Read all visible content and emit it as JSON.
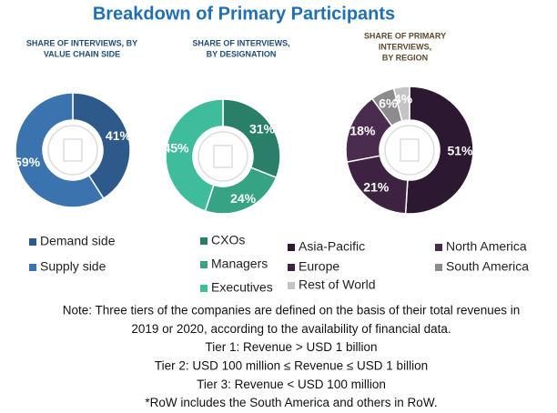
{
  "title": "Breakdown of Primary Participants",
  "chart_data": [
    {
      "type": "donut",
      "title": [
        "SHARE OF INTERVIEWS, BY",
        "VALUE CHAIN SIDE"
      ],
      "title_color": "#1f4e79",
      "categories": [
        "Demand side",
        "Supply side"
      ],
      "values": [
        41,
        59
      ],
      "value_labels": [
        "41%",
        "59%"
      ],
      "colors": [
        "#2d5a8a",
        "#3a73ad"
      ]
    },
    {
      "type": "donut",
      "title": [
        "SHARE OF INTERVIEWS,",
        "BY DESIGNATION"
      ],
      "title_color": "#1f4e79",
      "categories": [
        "CXOs",
        "Managers",
        "Executives"
      ],
      "values": [
        31,
        24,
        45
      ],
      "value_labels": [
        "31%",
        "24%",
        "45%"
      ],
      "colors": [
        "#2a7f6a",
        "#35a384",
        "#3fbc9c"
      ]
    },
    {
      "type": "donut",
      "title": [
        "SHARE OF PRIMARY",
        "INTERVIEWS,",
        "BY REGION"
      ],
      "title_color": "#5c4a2a",
      "categories": [
        "Asia-Pacific",
        "Europe",
        "North America",
        "South America",
        "Rest of World"
      ],
      "values": [
        51,
        21,
        18,
        6,
        4
      ],
      "value_labels": [
        "51%",
        "21%",
        "18%",
        "6%",
        "4%"
      ],
      "colors": [
        "#2c1830",
        "#3d2242",
        "#4a2c4f",
        "#8c8c8c",
        "#c4c4c4"
      ]
    }
  ],
  "note": [
    "Note: Three tiers of the companies are defined on the basis of their total revenues in",
    "2019 or 2020, according to the availability of financial data.",
    "Tier 1: Revenue > USD 1 billion",
    "Tier 2: USD 100 million ≤ Revenue ≤ USD 1 billion",
    "Tier 3: Revenue < USD 100 million",
    "*RoW includes the South America and others in RoW."
  ]
}
